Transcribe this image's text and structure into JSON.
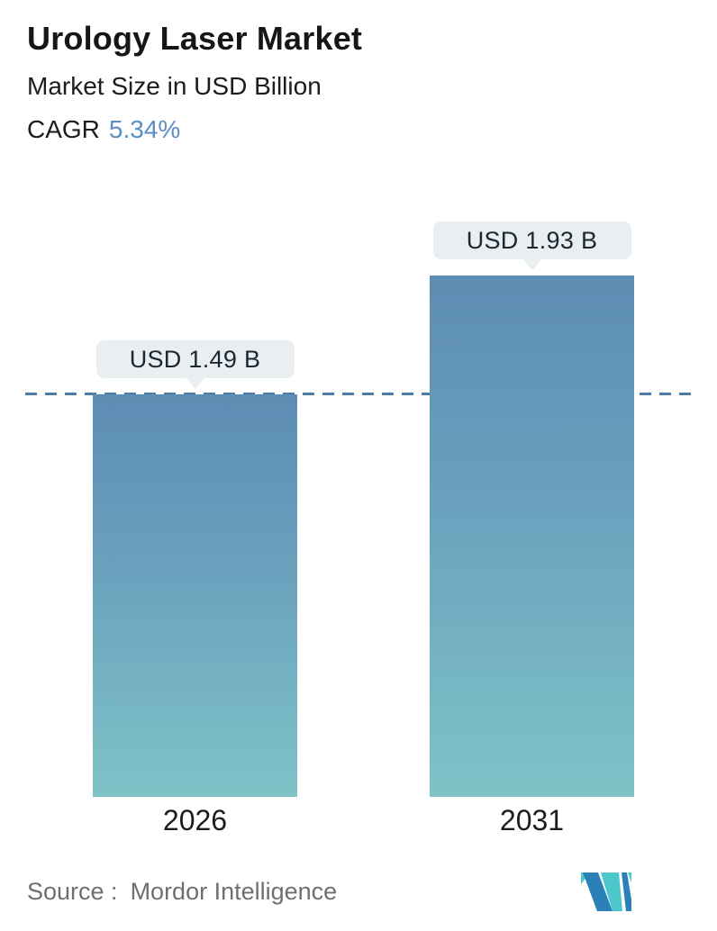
{
  "header": {
    "title": "Urology Laser Market",
    "subtitle": "Market Size in USD Billion",
    "cagr_label": "CAGR",
    "cagr_value": "5.34%"
  },
  "chart_data": {
    "type": "bar",
    "title": "Urology Laser Market",
    "subtitle": "Market Size in USD Billion",
    "cagr": "5.34%",
    "unit": "USD Billion",
    "categories": [
      "2026",
      "2031"
    ],
    "values": [
      1.49,
      1.93
    ],
    "value_labels": [
      "USD 1.49 B",
      "USD 1.93 B"
    ],
    "ylim": [
      0,
      2.2
    ],
    "grid": false,
    "legend": false,
    "axes_visible": false,
    "reference_line": {
      "value": 1.49,
      "style": "dashed",
      "color": "#4d7ca6"
    },
    "bar_gradient": {
      "top": "#5d8cb4",
      "bottom": "#7fc3c8"
    },
    "source": "Mordor Intelligence"
  },
  "footer": {
    "source_label": "Source :",
    "source_value": "Mordor Intelligence",
    "logo_name": "mordor-intelligence-logo"
  },
  "colors": {
    "accent_blue": "#5b8fc4",
    "bar_top": "#5d8cb4",
    "bar_bottom": "#7fc3c8",
    "dash_line": "#4d7ca6",
    "pill_background": "#e9eef1",
    "pill_text": "#1b2733",
    "source_text": "#6f6f6f",
    "logo_blue": "#2b80b9",
    "logo_teal": "#4cc7cc"
  }
}
